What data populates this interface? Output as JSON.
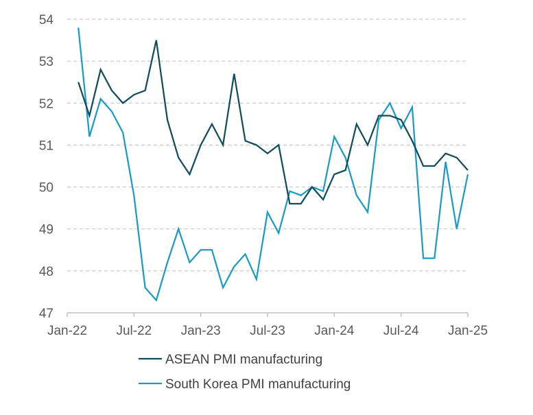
{
  "chart_data": {
    "type": "line",
    "title": "",
    "xlabel": "",
    "ylabel": "",
    "ylim": [
      47,
      54
    ],
    "yticks": [
      47,
      48,
      49,
      50,
      51,
      52,
      53,
      54
    ],
    "x_tick_labels": [
      "Jan-22",
      "Jul-22",
      "Jan-23",
      "Jul-23",
      "Jan-24",
      "Jul-24",
      "Jan-25"
    ],
    "grid": "horizontal dashed",
    "legend_placement": "bottom",
    "x": [
      "Feb-22",
      "Mar-22",
      "Apr-22",
      "May-22",
      "Jun-22",
      "Jul-22",
      "Aug-22",
      "Sep-22",
      "Oct-22",
      "Nov-22",
      "Dec-22",
      "Jan-23",
      "Feb-23",
      "Mar-23",
      "Apr-23",
      "May-23",
      "Jun-23",
      "Jul-23",
      "Aug-23",
      "Sep-23",
      "Oct-23",
      "Nov-23",
      "Dec-23",
      "Jan-24",
      "Feb-24",
      "Mar-24",
      "Apr-24",
      "May-24",
      "Jun-24",
      "Jul-24",
      "Aug-24",
      "Sep-24",
      "Oct-24",
      "Nov-24",
      "Dec-24",
      "Jan-25"
    ],
    "series": [
      {
        "name": "ASEAN PMI manufacturing",
        "color": "#0f4c5c",
        "values": [
          52.5,
          51.7,
          52.8,
          52.3,
          52.0,
          52.2,
          52.3,
          53.5,
          51.6,
          50.7,
          50.3,
          51.0,
          51.5,
          51.0,
          52.7,
          51.1,
          51.0,
          50.8,
          51.0,
          49.6,
          49.6,
          50.0,
          49.7,
          50.3,
          50.4,
          51.5,
          51.0,
          51.7,
          51.7,
          51.6,
          51.1,
          50.5,
          50.5,
          50.8,
          50.7,
          50.4
        ]
      },
      {
        "name": "South Korea PMI manufacturing",
        "color": "#1a9bc4",
        "values": [
          53.8,
          51.2,
          52.1,
          51.8,
          51.3,
          49.8,
          47.6,
          47.3,
          48.2,
          49.0,
          48.2,
          48.5,
          48.5,
          47.6,
          48.1,
          48.4,
          47.8,
          49.4,
          48.9,
          49.9,
          49.8,
          50.0,
          49.9,
          51.2,
          50.7,
          49.8,
          49.4,
          51.6,
          52.0,
          51.4,
          51.9,
          48.3,
          48.3,
          50.6,
          49.0,
          50.3
        ]
      }
    ]
  }
}
